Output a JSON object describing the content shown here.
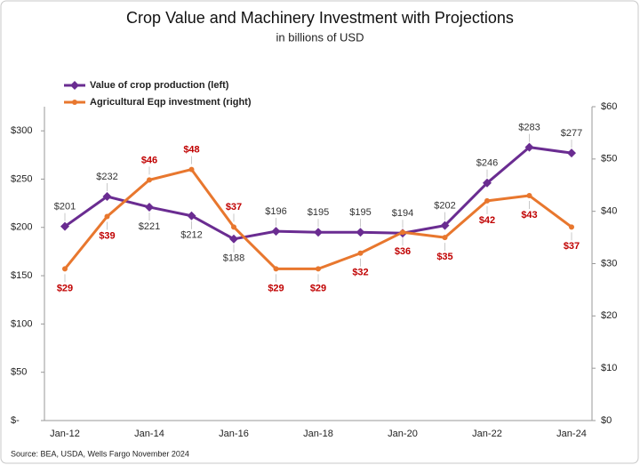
{
  "chart_data": {
    "type": "line",
    "title": "Crop Value and Machinery Investment with Projections",
    "subtitle": "in billions of USD",
    "source": "Source: BEA, USDA, Wells Fargo November 2024",
    "categories": [
      "Jan-12",
      null,
      "Jan-14",
      null,
      "Jan-16",
      null,
      "Jan-18",
      null,
      "Jan-20",
      null,
      "Jan-22",
      null,
      "Jan-24"
    ],
    "series": [
      {
        "name": "Value of crop production (left)",
        "color": "#6a2c91",
        "marker": "diamond",
        "values": [
          201,
          232,
          221,
          212,
          188,
          196,
          195,
          195,
          194,
          202,
          246,
          283,
          277
        ],
        "value_labels": [
          "$201",
          "$232",
          "$221",
          "$212",
          "$188",
          "$196",
          "$195",
          "$195",
          "$194",
          "$202",
          "$246",
          "$283",
          "$277"
        ]
      },
      {
        "name": "Agricultural Eqp investment (right)",
        "color": "#e8772e",
        "marker": "circle",
        "axis": "y2",
        "values": [
          29,
          39,
          46,
          48,
          37,
          29,
          29,
          32,
          36,
          35,
          42,
          43,
          37
        ],
        "value_labels": [
          "$29",
          "$39",
          "$46",
          "$48",
          "$37",
          "$29",
          "$29",
          "$32",
          "$36",
          "$35",
          "$42",
          "$43",
          "$37"
        ]
      }
    ],
    "ylim": [
      0,
      325
    ],
    "yticks": [
      {
        "value": 0,
        "label": "$-"
      },
      {
        "value": 50,
        "label": "$50"
      },
      {
        "value": 100,
        "label": "$100"
      },
      {
        "value": 150,
        "label": "$150"
      },
      {
        "value": 200,
        "label": "$200"
      },
      {
        "value": 250,
        "label": "$250"
      },
      {
        "value": 300,
        "label": "$300"
      }
    ],
    "y2lim": [
      0,
      60
    ],
    "y2ticks": [
      {
        "value": 0,
        "label": "$0"
      },
      {
        "value": 10,
        "label": "$10"
      },
      {
        "value": 20,
        "label": "$20"
      },
      {
        "value": 30,
        "label": "$30"
      },
      {
        "value": 40,
        "label": "$40"
      },
      {
        "value": 50,
        "label": "$50"
      },
      {
        "value": 60,
        "label": "$60"
      }
    ],
    "grid": false,
    "legend": "top-left"
  }
}
